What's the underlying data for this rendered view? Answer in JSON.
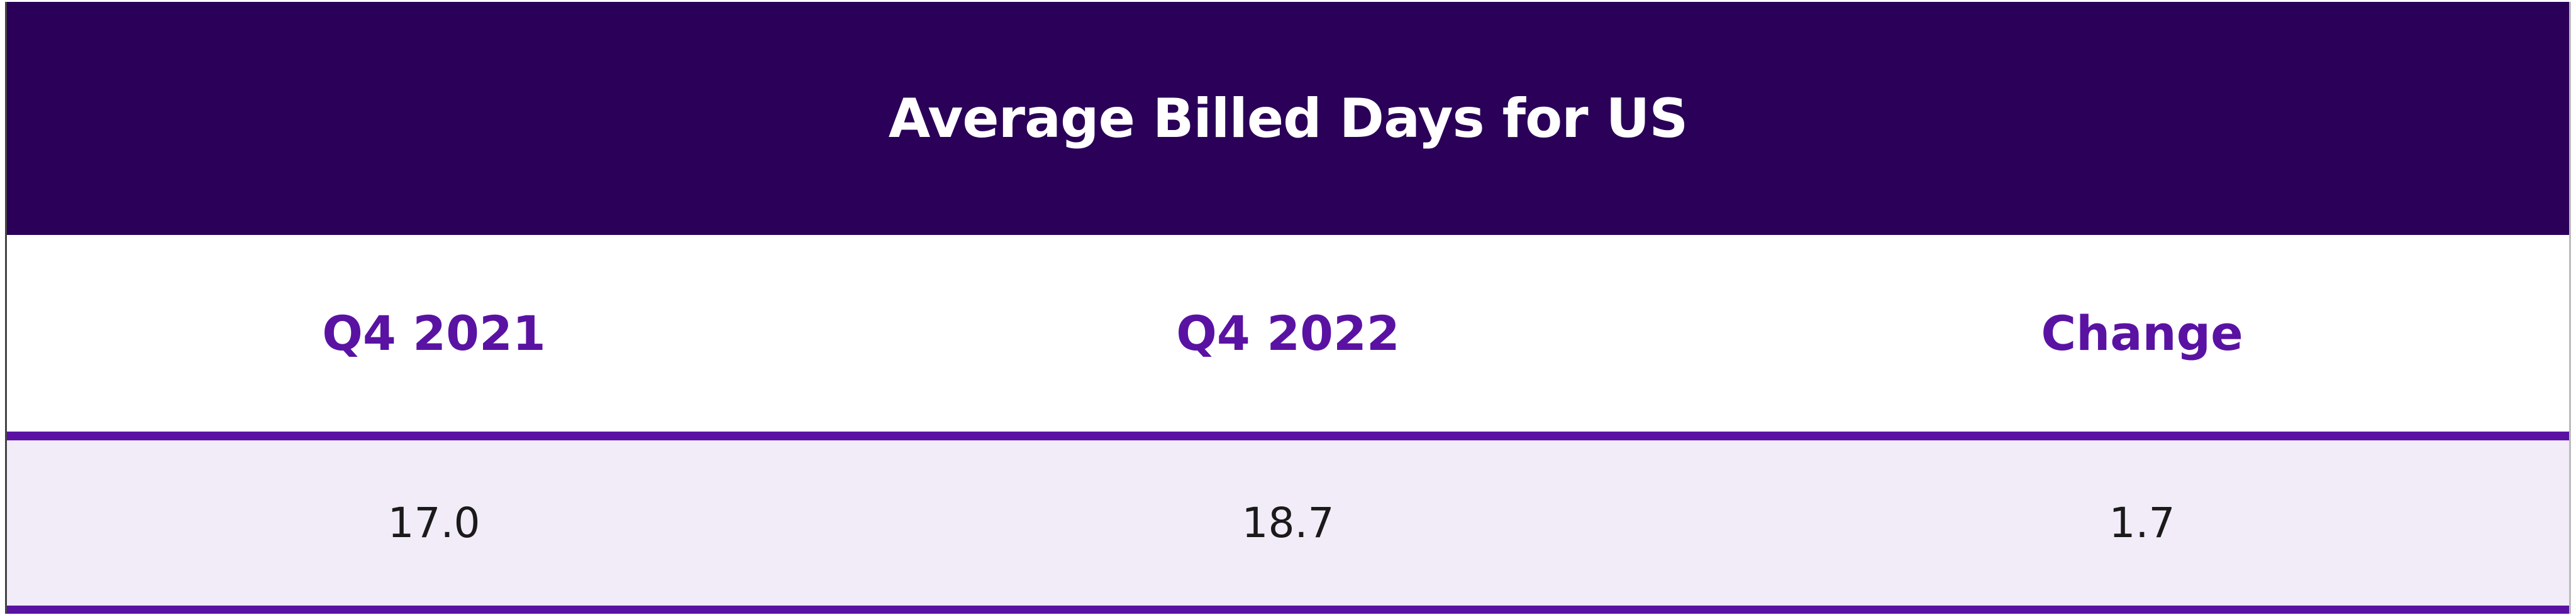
{
  "title": "Average Billed Days for US",
  "table": {
    "headers": [
      "Q4 2021",
      "Q4 2022",
      "Change"
    ],
    "rows": [
      [
        "17.0",
        "18.7",
        "1.7"
      ]
    ]
  }
}
